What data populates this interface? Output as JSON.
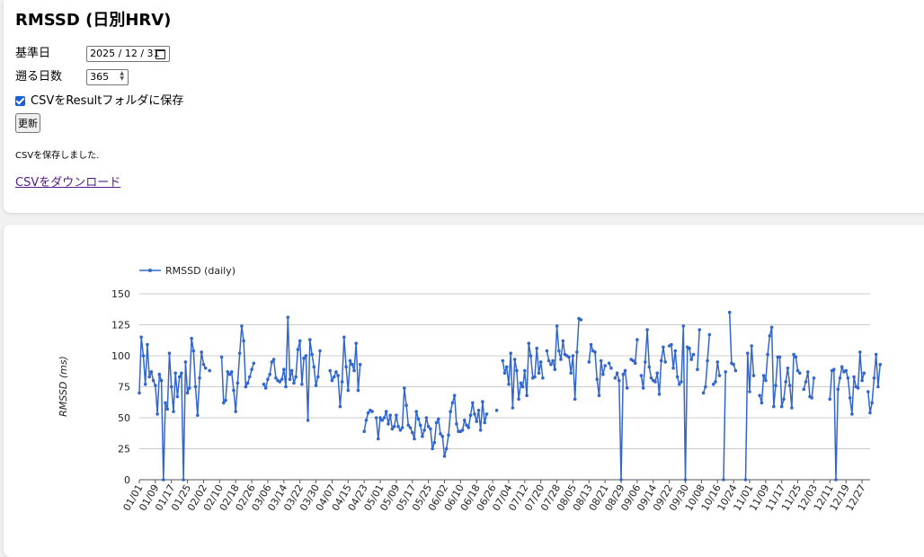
{
  "page": {
    "title": "RMSSD (日別HRV)"
  },
  "form": {
    "date_label": "基準日",
    "date_value": "2025 / 12 / 31",
    "days_label": "遡る日数",
    "days_value": "365",
    "checkbox_label": "CSVをResultフォルダに保存",
    "checkbox_checked": true,
    "refresh_label": "更新",
    "status_text": "CSVを保存しました.",
    "download_link": "CSVをダウンロード"
  },
  "icons": {
    "date": "calendar-icon",
    "spin": "spin-arrows-icon",
    "check": "checkmark-icon"
  },
  "colors": {
    "series": "#3366cc",
    "grid": "#cccccc",
    "link": "#551a8b",
    "checkbox": "#1a5fd0"
  },
  "chart_data": {
    "type": "line",
    "ylabel": "RMSSD (ms)",
    "ylim": [
      0,
      150
    ],
    "yticks": [
      0,
      25,
      50,
      75,
      100,
      125,
      150
    ],
    "grid": true,
    "legend": "top-left",
    "xlim": [
      "2025-01-01",
      "2025-12-31"
    ],
    "x_ticks": [
      "01/01",
      "01/09",
      "01/17",
      "01/25",
      "02/02",
      "02/10",
      "02/18",
      "02/26",
      "03/06",
      "03/14",
      "03/22",
      "03/30",
      "04/07",
      "04/15",
      "04/23",
      "05/01",
      "05/09",
      "05/17",
      "05/25",
      "06/02",
      "06/10",
      "06/18",
      "06/26",
      "07/04",
      "07/12",
      "07/20",
      "07/28",
      "08/05",
      "08/13",
      "08/21",
      "08/29",
      "09/06",
      "09/14",
      "09/22",
      "09/30",
      "10/08",
      "10/16",
      "10/24",
      "11/01",
      "11/09",
      "11/17",
      "11/25",
      "12/03",
      "12/11",
      "12/19",
      "12/27"
    ],
    "series": [
      {
        "name": "RMSSD (daily)",
        "start_date": "2025-01-01",
        "values": [
          70,
          115,
          100,
          77,
          109,
          83,
          87,
          80,
          76,
          53,
          85,
          80,
          0,
          62,
          57,
          102,
          75,
          55,
          86,
          67,
          83,
          86,
          0,
          95,
          70,
          74,
          114,
          104,
          75,
          52,
          82,
          103,
          93,
          90,
          null,
          88,
          null,
          null,
          null,
          null,
          null,
          99,
          62,
          64,
          87,
          85,
          87,
          72,
          55,
          78,
          102,
          124,
          112,
          75,
          78,
          83,
          89,
          94,
          null,
          null,
          null,
          null,
          77,
          74,
          81,
          85,
          95,
          97,
          82,
          80,
          79,
          81,
          89,
          75,
          131,
          81,
          88,
          78,
          83,
          105,
          112,
          77,
          98,
          100,
          48,
          113,
          101,
          91,
          76,
          83,
          104,
          null,
          null,
          null,
          null,
          88,
          80,
          83,
          87,
          84,
          59,
          79,
          115,
          91,
          72,
          96,
          93,
          88,
          110,
          72,
          93,
          null,
          39,
          48,
          54,
          56,
          55,
          null,
          50,
          33,
          50,
          48,
          50,
          55,
          45,
          52,
          41,
          43,
          52,
          43,
          40,
          42,
          74,
          60,
          44,
          42,
          38,
          33,
          55,
          49,
          44,
          35,
          40,
          50,
          43,
          41,
          25,
          30,
          46,
          49,
          37,
          35,
          19,
          25,
          36,
          55,
          62,
          68,
          45,
          39,
          39,
          40,
          48,
          44,
          42,
          52,
          62,
          53,
          47,
          56,
          40,
          63,
          46,
          53,
          null,
          null,
          null,
          null,
          56,
          null,
          null,
          96,
          86,
          91,
          77,
          102,
          58,
          97,
          88,
          65,
          78,
          75,
          88,
          68,
          110,
          100,
          82,
          83,
          106,
          86,
          95,
          82,
          null,
          104,
          96,
          93,
          96,
          89,
          124,
          104,
          97,
          112,
          101,
          100,
          99,
          86,
          100,
          65,
          103,
          130,
          129,
          null,
          null,
          null,
          95,
          109,
          104,
          103,
          81,
          68,
          96,
          85,
          92,
          null,
          94,
          90,
          null,
          82,
          86,
          80,
          0,
          85,
          88,
          74,
          null,
          97,
          96,
          94,
          113,
          null,
          84,
          74,
          95,
          121,
          91,
          82,
          80,
          79,
          86,
          69,
          96,
          107,
          95,
          null,
          108,
          109,
          90,
          104,
          83,
          77,
          79,
          124,
          0,
          107,
          106,
          97,
          101,
          null,
          89,
          121,
          null,
          70,
          75,
          96,
          117,
          null,
          77,
          79,
          95,
          84,
          null,
          0,
          87,
          null,
          135,
          94,
          93,
          88,
          null,
          null,
          null,
          null,
          0,
          102,
          71,
          108,
          84,
          null,
          null,
          68,
          62,
          84,
          80,
          101,
          116,
          123,
          59,
          76,
          99,
          99,
          59,
          65,
          79,
          90,
          76,
          58,
          101,
          99,
          88,
          86,
          null,
          73,
          79,
          87,
          67,
          66,
          82,
          null,
          null,
          null,
          null,
          null,
          null,
          null,
          65,
          88,
          89,
          0,
          73,
          82,
          91,
          87,
          88,
          82,
          66,
          53,
          83,
          75,
          74,
          103,
          80,
          86,
          null,
          71,
          54,
          62,
          82,
          101,
          75,
          93
        ]
      }
    ]
  }
}
